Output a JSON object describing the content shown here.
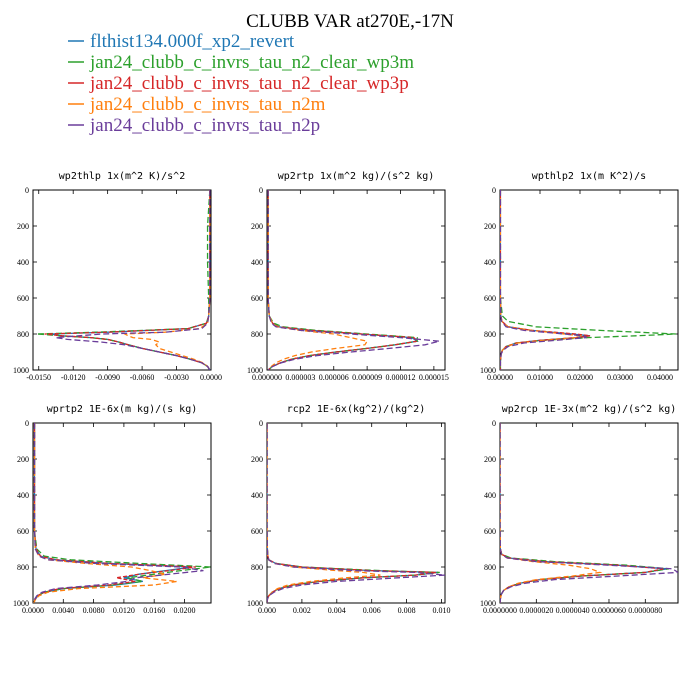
{
  "figure": {
    "title": "CLUBB VAR at270E,-17N",
    "legend": [
      {
        "label": "flthist134.000f_xp2_revert",
        "color": "#1f77b4"
      },
      {
        "label": "jan24_clubb_c_invrs_tau_n2_clear_wp3m",
        "color": "#2ca02c"
      },
      {
        "label": "jan24_clubb_c_invrs_tau_n2_clear_wp3p",
        "color": "#d62728"
      },
      {
        "label": "jan24_clubb_c_invrs_tau_n2m",
        "color": "#ff7f0e"
      },
      {
        "label": "jan24_clubb_c_invrs_tau_n2p",
        "color": "#6a3d9a"
      }
    ]
  },
  "chart_data": [
    {
      "type": "line",
      "title": "wp2thlp  1x(m^2 K)/s^2",
      "xlim": [
        -0.0155,
        0.0
      ],
      "ylim": [
        1000,
        0
      ],
      "x_ticks": [
        -0.015,
        -0.012,
        -0.009,
        -0.006,
        -0.003,
        0.0
      ],
      "x_tick_labels": [
        "-0.0150",
        "-0.0120",
        "-0.0090",
        "-0.0060",
        "-0.0030",
        "0.0000"
      ],
      "y_ticks": [
        0,
        200,
        400,
        600,
        800,
        1000
      ],
      "y_tick_labels": [
        "0",
        "200",
        "400",
        "600",
        "800",
        "1000"
      ],
      "y": [
        0,
        200,
        400,
        600,
        700,
        740,
        770,
        790,
        800,
        810,
        820,
        830,
        845,
        860,
        880,
        900,
        920,
        940,
        960,
        980,
        1000
      ],
      "series": [
        {
          "values": [
            -0.0001,
            -0.0001,
            -0.0001,
            -0.0001,
            -0.0002,
            -0.0004,
            -0.002,
            -0.009,
            -0.014,
            -0.013,
            -0.0105,
            -0.009,
            -0.008,
            -0.0072,
            -0.006,
            -0.0045,
            -0.003,
            -0.0018,
            -0.0008,
            -0.0003,
            -0.0001
          ]
        },
        {
          "values": [
            -0.0001,
            -0.0003,
            -0.0003,
            -0.0002,
            -0.0002,
            -0.0004,
            -0.002,
            -0.01,
            -0.0152,
            -0.013,
            -0.0105,
            -0.009,
            -0.008,
            -0.0072,
            -0.006,
            -0.0045,
            -0.003,
            -0.0018,
            -0.0008,
            -0.0003,
            -0.0001
          ]
        },
        {
          "values": [
            -0.0001,
            -0.0001,
            -0.0001,
            -0.0001,
            -0.0002,
            -0.0004,
            -0.002,
            -0.009,
            -0.0145,
            -0.013,
            -0.0105,
            -0.009,
            -0.008,
            -0.0072,
            -0.006,
            -0.0045,
            -0.003,
            -0.0018,
            -0.0008,
            -0.0003,
            -0.0001
          ]
        },
        {
          "values": [
            -0.0001,
            -0.0001,
            -0.0001,
            -0.0001,
            -0.0002,
            -0.0003,
            -0.001,
            -0.004,
            -0.0075,
            -0.0072,
            -0.0068,
            -0.0052,
            -0.0045,
            -0.0048,
            -0.0045,
            -0.0035,
            -0.0025,
            -0.0015,
            -0.0007,
            -0.0003,
            -0.0001
          ]
        },
        {
          "values": [
            -0.0001,
            -0.0001,
            -0.0001,
            -0.0001,
            -0.0002,
            -0.0003,
            -0.0008,
            -0.004,
            -0.0095,
            -0.0115,
            -0.0135,
            -0.0125,
            -0.0095,
            -0.0075,
            -0.006,
            -0.0045,
            -0.003,
            -0.0018,
            -0.0008,
            -0.0003,
            -0.0001
          ]
        }
      ]
    },
    {
      "type": "line",
      "title": "wp2rtp  1x(m^2 kg)/(s^2 kg)",
      "xlim": [
        0.0,
        1.6e-05
      ],
      "ylim": [
        1000,
        0
      ],
      "x_ticks": [
        0.0,
        3e-06,
        6e-06,
        9e-06,
        1.2e-05,
        1.5e-05
      ],
      "x_tick_labels": [
        "0.000000",
        "0.000003",
        "0.000006",
        "0.000009",
        "0.000012",
        "0.000015"
      ],
      "y_ticks": [
        0,
        200,
        400,
        600,
        800,
        1000
      ],
      "y_tick_labels": [
        "0",
        "200",
        "400",
        "600",
        "800",
        "1000"
      ],
      "y": [
        0,
        200,
        400,
        600,
        700,
        740,
        760,
        780,
        800,
        820,
        840,
        860,
        880,
        900,
        920,
        940,
        960,
        980,
        1000
      ],
      "series": [
        {
          "values": [
            1e-07,
            1e-07,
            1e-07,
            1e-07,
            2e-07,
            5e-07,
            1e-06,
            4e-06,
            8.5e-06,
            1.3e-05,
            1.35e-05,
            1.15e-05,
            9e-06,
            6.2e-06,
            3.8e-06,
            2.2e-06,
            1.2e-06,
            5e-07,
            1e-07
          ]
        },
        {
          "values": [
            1e-07,
            1e-07,
            1e-07,
            1e-07,
            2e-07,
            6e-07,
            1.4e-06,
            4.5e-06,
            9e-06,
            1.35e-05,
            1.35e-05,
            1.15e-05,
            9e-06,
            6.2e-06,
            3.8e-06,
            2.2e-06,
            1.2e-06,
            5e-07,
            1e-07
          ]
        },
        {
          "values": [
            1e-07,
            1e-07,
            1e-07,
            1e-07,
            2e-07,
            5e-07,
            1e-06,
            4e-06,
            8.5e-06,
            1.32e-05,
            1.35e-05,
            1.15e-05,
            9e-06,
            6.2e-06,
            3.8e-06,
            2.2e-06,
            1.2e-06,
            5e-07,
            1e-07
          ]
        },
        {
          "values": [
            1e-07,
            1e-07,
            1e-07,
            1e-07,
            2e-07,
            5e-07,
            9e-07,
            3e-06,
            6e-06,
            7.5e-06,
            9e-06,
            8.8e-06,
            6.2e-06,
            4e-06,
            2.5e-06,
            1.5e-06,
            8e-07,
            4e-07,
            1e-07
          ]
        },
        {
          "values": [
            1e-07,
            1e-07,
            1e-07,
            1e-07,
            2e-07,
            4e-07,
            8e-07,
            3e-06,
            7.5e-06,
            1.2e-05,
            1.55e-05,
            1.42e-05,
            1.1e-05,
            7.5e-06,
            4.5e-06,
            2.5e-06,
            1.3e-06,
            5e-07,
            1e-07
          ]
        }
      ]
    },
    {
      "type": "line",
      "title": "wpthlp2  1x(m K^2)/s",
      "xlim": [
        0.0,
        0.0445
      ],
      "ylim": [
        1000,
        0
      ],
      "x_ticks": [
        0.0,
        0.01,
        0.02,
        0.03,
        0.04
      ],
      "x_tick_labels": [
        "0.00000",
        "0.01000",
        "0.02000",
        "0.03000",
        "0.04000"
      ],
      "y_ticks": [
        0,
        200,
        400,
        600,
        800,
        1000
      ],
      "y_tick_labels": [
        "0",
        "200",
        "400",
        "600",
        "800",
        "1000"
      ],
      "y": [
        0,
        200,
        400,
        600,
        700,
        730,
        760,
        780,
        800,
        810,
        820,
        835,
        850,
        870,
        890,
        910,
        930,
        950,
        970,
        1000
      ],
      "series": [
        {
          "values": [
            0.0001,
            0.0001,
            0.0001,
            0.0001,
            0.0002,
            0.0005,
            0.002,
            0.008,
            0.018,
            0.0225,
            0.019,
            0.01,
            0.004,
            0.0015,
            0.0006,
            0.0003,
            0.0002,
            0.0001,
            0.0001,
            0.0001
          ]
        },
        {
          "values": [
            0.0001,
            0.0001,
            0.0001,
            0.0001,
            0.0006,
            0.002,
            0.009,
            0.025,
            0.044,
            0.034,
            0.022,
            0.011,
            0.004,
            0.0015,
            0.0006,
            0.0003,
            0.0002,
            0.0001,
            0.0001,
            0.0001
          ]
        },
        {
          "values": [
            0.0001,
            0.0001,
            0.0001,
            0.0001,
            0.0002,
            0.0005,
            0.002,
            0.008,
            0.019,
            0.0225,
            0.019,
            0.01,
            0.004,
            0.0015,
            0.0006,
            0.0003,
            0.0002,
            0.0001,
            0.0001,
            0.0001
          ]
        },
        {
          "values": [
            0.0001,
            0.0001,
            0.0001,
            0.0001,
            0.0002,
            0.0005,
            0.002,
            0.008,
            0.016,
            0.02,
            0.019,
            0.011,
            0.0045,
            0.0016,
            0.0006,
            0.0003,
            0.0002,
            0.0001,
            0.0001,
            0.0001
          ]
        },
        {
          "values": [
            0.0001,
            0.0001,
            0.0001,
            0.0001,
            0.0002,
            0.0004,
            0.0015,
            0.006,
            0.016,
            0.021,
            0.0215,
            0.014,
            0.006,
            0.002,
            0.0008,
            0.0003,
            0.0002,
            0.0001,
            0.0001,
            0.0001
          ]
        }
      ]
    },
    {
      "type": "line",
      "title": "wprtp2  1E-6x(m kg)/(s kg)",
      "xlim": [
        0.0,
        0.0235
      ],
      "ylim": [
        1000,
        0
      ],
      "x_ticks": [
        0.0,
        0.004,
        0.008,
        0.012,
        0.016,
        0.02
      ],
      "x_tick_labels": [
        "0.0000",
        "0.0040",
        "0.0080",
        "0.0120",
        "0.0160",
        "0.0200"
      ],
      "y_ticks": [
        0,
        200,
        400,
        600,
        800,
        1000
      ],
      "y_tick_labels": [
        "0",
        "200",
        "400",
        "600",
        "800",
        "1000"
      ],
      "y": [
        0,
        200,
        400,
        600,
        700,
        740,
        760,
        780,
        800,
        820,
        840,
        860,
        880,
        900,
        920,
        940,
        960,
        980,
        1000
      ],
      "series": [
        {
          "values": [
            0.0002,
            0.0002,
            0.0002,
            0.0002,
            0.0004,
            0.001,
            0.003,
            0.01,
            0.021,
            0.0175,
            0.014,
            0.012,
            0.0145,
            0.011,
            0.004,
            0.0015,
            0.0006,
            0.0003,
            0.0001
          ]
        },
        {
          "values": [
            0.0002,
            0.0002,
            0.0002,
            0.0002,
            0.0005,
            0.0015,
            0.005,
            0.014,
            0.0235,
            0.0195,
            0.016,
            0.0125,
            0.0145,
            0.0105,
            0.004,
            0.0015,
            0.0006,
            0.0003,
            0.0001
          ]
        },
        {
          "values": [
            0.0002,
            0.0002,
            0.0002,
            0.0002,
            0.0004,
            0.001,
            0.003,
            0.01,
            0.0215,
            0.018,
            0.014,
            0.011,
            0.0135,
            0.01,
            0.0035,
            0.0015,
            0.0006,
            0.0003,
            0.0001
          ]
        },
        {
          "values": [
            0.0002,
            0.0002,
            0.0002,
            0.0002,
            0.0003,
            0.0008,
            0.002,
            0.007,
            0.013,
            0.0155,
            0.0175,
            0.0145,
            0.019,
            0.016,
            0.006,
            0.002,
            0.0008,
            0.0003,
            0.0001
          ]
        },
        {
          "values": [
            0.0002,
            0.0002,
            0.0002,
            0.0002,
            0.0003,
            0.0008,
            0.002,
            0.008,
            0.0195,
            0.0225,
            0.018,
            0.0135,
            0.0125,
            0.0085,
            0.003,
            0.0012,
            0.0005,
            0.0002,
            0.0001
          ]
        }
      ]
    },
    {
      "type": "line",
      "title": "rcp2  1E-6x(kg^2)/(kg^2)",
      "xlim": [
        0.0,
        0.0102
      ],
      "ylim": [
        1000,
        0
      ],
      "x_ticks": [
        0.0,
        0.002,
        0.004,
        0.006,
        0.008,
        0.01
      ],
      "x_tick_labels": [
        "0.000",
        "0.002",
        "0.004",
        "0.006",
        "0.008",
        "0.010"
      ],
      "y_ticks": [
        0,
        200,
        400,
        600,
        800,
        1000
      ],
      "y_tick_labels": [
        "0",
        "200",
        "400",
        "600",
        "800",
        "1000"
      ],
      "y": [
        0,
        200,
        400,
        600,
        700,
        740,
        760,
        780,
        800,
        820,
        830,
        845,
        860,
        880,
        900,
        920,
        940,
        960,
        980,
        1000
      ],
      "series": [
        {
          "values": [
            0.0,
            0.0,
            0.0,
            0.0,
            2e-05,
            5e-05,
            0.0001,
            0.0005,
            0.002,
            0.006,
            0.0098,
            0.0085,
            0.0055,
            0.003,
            0.0015,
            0.0007,
            0.0003,
            0.0001,
            2e-05,
            0.0
          ]
        },
        {
          "values": [
            0.0,
            0.0,
            0.0,
            0.0,
            2e-05,
            5e-05,
            0.0001,
            0.0005,
            0.002,
            0.0065,
            0.0099,
            0.0085,
            0.0055,
            0.003,
            0.0015,
            0.0007,
            0.0003,
            0.0001,
            2e-05,
            0.0
          ]
        },
        {
          "values": [
            0.0,
            0.0,
            0.0,
            0.0,
            2e-05,
            5e-05,
            0.0001,
            0.0005,
            0.002,
            0.006,
            0.0097,
            0.0085,
            0.0055,
            0.003,
            0.0015,
            0.0007,
            0.0003,
            0.0001,
            2e-05,
            0.0
          ]
        },
        {
          "values": [
            0.0,
            0.0,
            0.0,
            0.0,
            2e-05,
            4e-05,
            0.0001,
            0.0004,
            0.0015,
            0.004,
            0.0055,
            0.0065,
            0.0045,
            0.0025,
            0.0012,
            0.0006,
            0.0003,
            0.0001,
            2e-05,
            0.0
          ]
        },
        {
          "values": [
            0.0,
            0.0,
            0.0,
            0.0,
            2e-05,
            4e-05,
            0.0001,
            0.0004,
            0.0015,
            0.005,
            0.0085,
            0.0102,
            0.0075,
            0.004,
            0.002,
            0.0009,
            0.0004,
            0.0001,
            2e-05,
            0.0
          ]
        }
      ]
    },
    {
      "type": "line",
      "title": "wp2rcp  1E-3x(m^2 kg)/(s^2 kg)",
      "xlim": [
        0.0,
        9.8e-06
      ],
      "ylim": [
        1000,
        0
      ],
      "x_ticks": [
        0.0,
        2e-06,
        4e-06,
        6e-06,
        8e-06
      ],
      "x_tick_labels": [
        "0.0000000",
        "0.0000020",
        "0.0000040",
        "0.0000060",
        "0.0000080"
      ],
      "y_ticks": [
        0,
        200,
        400,
        600,
        800,
        1000
      ],
      "y_tick_labels": [
        "0",
        "200",
        "400",
        "600",
        "800",
        "1000"
      ],
      "y": [
        0,
        200,
        400,
        600,
        700,
        730,
        750,
        770,
        790,
        810,
        830,
        850,
        870,
        890,
        910,
        930,
        950,
        970,
        1000
      ],
      "series": [
        {
          "values": [
            0.0,
            0.0,
            0.0,
            0.0,
            2e-08,
            1e-07,
            5e-07,
            2.5e-06,
            6.5e-06,
            9.2e-06,
            8e-06,
            4.5e-06,
            2.2e-06,
            1.1e-06,
            5e-07,
            2e-07,
            8e-08,
            3e-08,
            0.0
          ]
        },
        {
          "values": [
            0.0,
            0.0,
            0.0,
            0.0,
            2e-08,
            1e-07,
            6e-07,
            3e-06,
            7e-06,
            9.3e-06,
            8e-06,
            4.5e-06,
            2.2e-06,
            1.1e-06,
            5e-07,
            2e-07,
            8e-08,
            3e-08,
            0.0
          ]
        },
        {
          "values": [
            0.0,
            0.0,
            0.0,
            0.0,
            2e-08,
            1e-07,
            5e-07,
            2.5e-06,
            6.5e-06,
            9e-06,
            8e-06,
            4.5e-06,
            2.2e-06,
            1.1e-06,
            5e-07,
            2e-07,
            8e-08,
            3e-08,
            0.0
          ]
        },
        {
          "values": [
            0.0,
            0.0,
            0.0,
            0.0,
            2e-08,
            8e-08,
            4e-07,
            1.8e-06,
            3.8e-06,
            5e-06,
            5.5e-06,
            4e-06,
            2e-06,
            1e-06,
            5e-07,
            2e-07,
            8e-08,
            3e-08,
            0.0
          ]
        },
        {
          "values": [
            0.0,
            0.0,
            0.0,
            0.0,
            2e-08,
            8e-08,
            4e-07,
            2e-06,
            6e-06,
            9.5e-06,
            9.8e-06,
            6.5e-06,
            3e-06,
            1.4e-06,
            6e-07,
            2e-07,
            8e-08,
            3e-08,
            0.0
          ]
        }
      ]
    }
  ]
}
